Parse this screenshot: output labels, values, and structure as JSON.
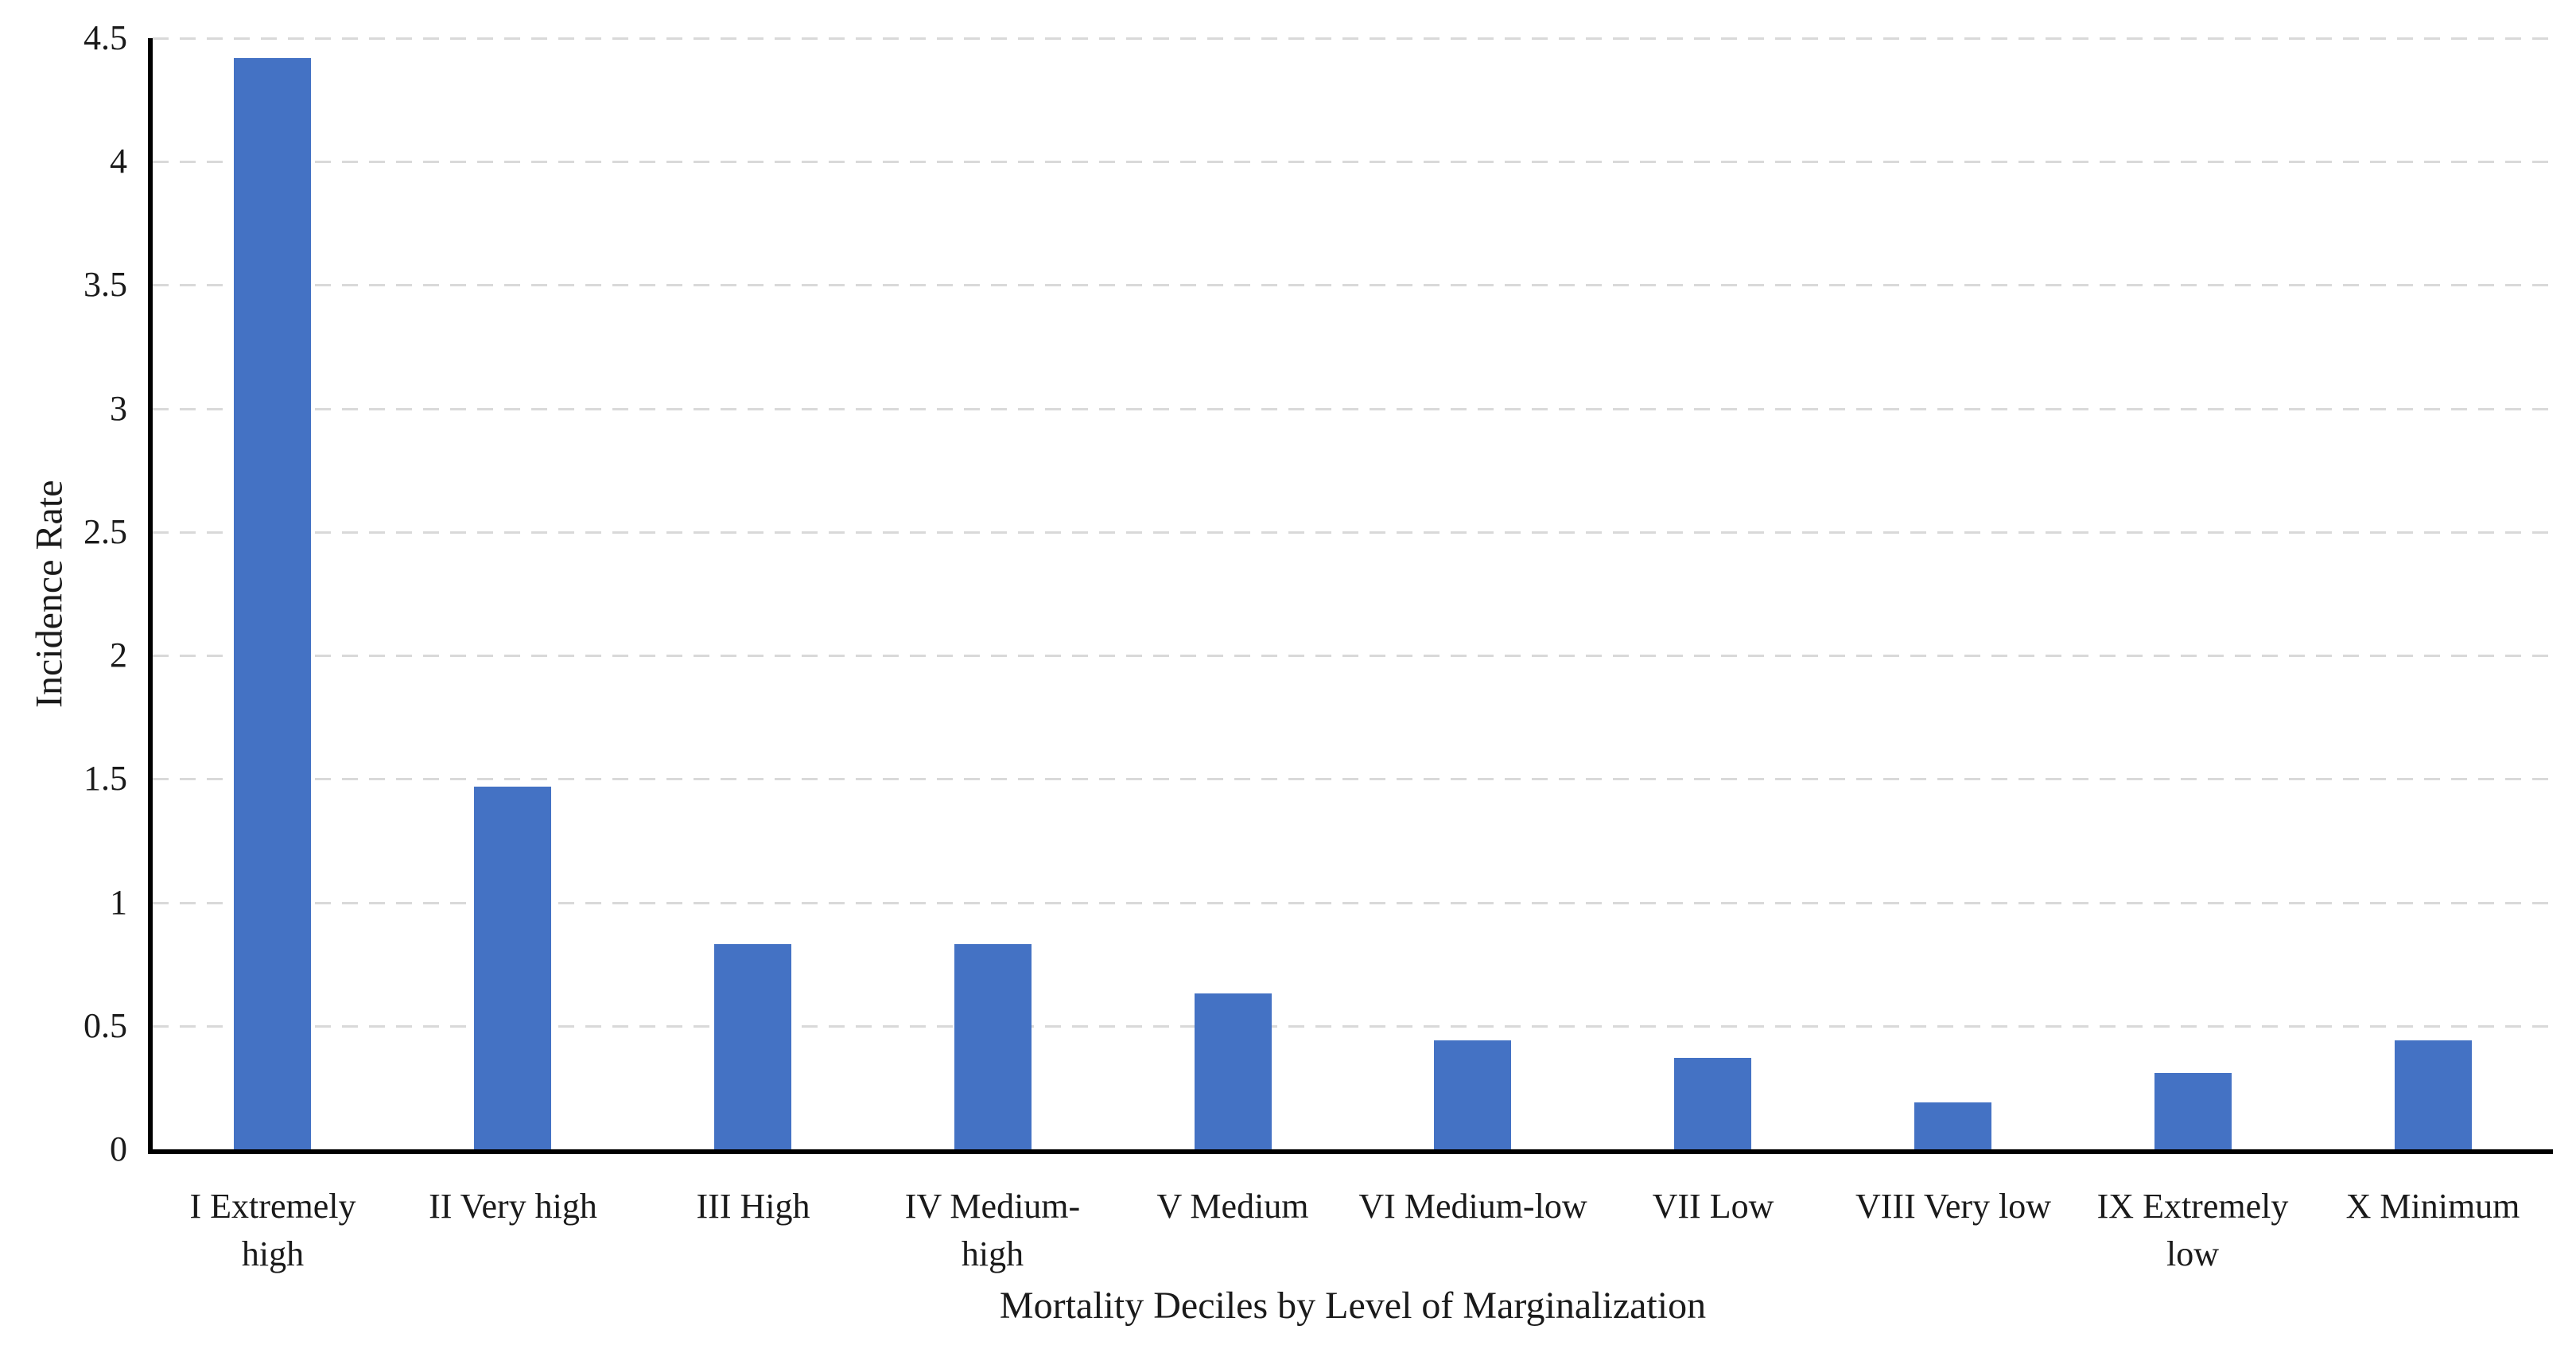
{
  "chart_data": {
    "type": "bar",
    "title": "",
    "xlabel": "Mortality Deciles by Level of Marginalization",
    "ylabel": "Incidence Rate",
    "categories": [
      "I Extremely\nhigh",
      "II Very high",
      "III High",
      "IV Medium-\nhigh",
      "V Medium",
      "VI Medium-low",
      "VII Low",
      "VIII Very low",
      "IX Extremely\nlow",
      "X Minimum"
    ],
    "values": [
      4.42,
      1.47,
      0.83,
      0.83,
      0.63,
      0.44,
      0.37,
      0.19,
      0.31,
      0.44
    ],
    "ylim": [
      0,
      4.5
    ],
    "ytick_step": 0.5,
    "ytick_labels": [
      "0",
      "0.5",
      "1",
      "1.5",
      "2",
      "2.5",
      "3",
      "3.5",
      "4",
      "4.5"
    ],
    "grid": "horizontal-dashed",
    "legend": "none",
    "bar_color": "#4472C4",
    "gridline_color": "#D9D9D9",
    "axis_color": "#000000",
    "text_color": "#1A1A1A"
  }
}
